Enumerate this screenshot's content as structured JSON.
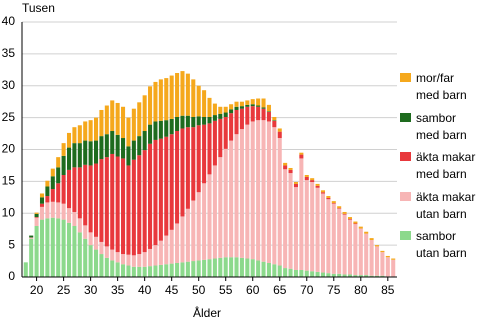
{
  "chart_data": {
    "type": "stacked-bar",
    "ylabel": "Tusen",
    "xlabel": "Ålder",
    "x": [
      18,
      19,
      20,
      21,
      22,
      23,
      24,
      25,
      26,
      27,
      28,
      29,
      30,
      31,
      32,
      33,
      34,
      35,
      36,
      37,
      38,
      39,
      40,
      41,
      42,
      43,
      44,
      45,
      46,
      47,
      48,
      49,
      50,
      51,
      52,
      53,
      54,
      55,
      56,
      57,
      58,
      59,
      60,
      61,
      62,
      63,
      64,
      65,
      66,
      67,
      68,
      69,
      70,
      71,
      72,
      73,
      74,
      75,
      76,
      77,
      78,
      79,
      80,
      81,
      82,
      83,
      84,
      85,
      86
    ],
    "xlim": [
      17.3,
      86.7
    ],
    "xticks": [
      20,
      25,
      30,
      35,
      40,
      45,
      50,
      55,
      60,
      65,
      70,
      75,
      80,
      85
    ],
    "ylim": [
      0,
      40
    ],
    "yticks": [
      0,
      5,
      10,
      15,
      20,
      25,
      30,
      35,
      40
    ],
    "grid": true,
    "series": [
      {
        "name": "sambor\nutan barn",
        "color": "#8cd98c",
        "values": [
          2.3,
          6,
          8,
          9,
          9.2,
          9.3,
          9.2,
          9,
          8.5,
          8,
          7,
          6,
          5,
          4.3,
          3.6,
          3,
          2.6,
          2.3,
          2,
          1.8,
          1.6,
          1.6,
          1.6,
          1.7,
          1.8,
          1.9,
          2,
          2.1,
          2.2,
          2.3,
          2.4,
          2.5,
          2.6,
          2.7,
          2.8,
          2.9,
          3,
          3.1,
          3.1,
          3.1,
          3,
          2.9,
          2.8,
          2.6,
          2.4,
          2.2,
          2,
          1.8,
          1.4,
          1.3,
          1.1,
          1.1,
          1,
          0.9,
          0.8,
          0.7,
          0.6,
          0.5,
          0.5,
          0.4,
          0.4,
          0.3,
          0.3,
          0.3,
          0.2,
          0.2,
          0.2,
          0.1,
          0.1
        ]
      },
      {
        "name": "äkta makar\nutan barn",
        "color": "#f7b5b5",
        "values": [
          0,
          0.2,
          1.3,
          2,
          2.5,
          2.5,
          2.5,
          2.5,
          2.3,
          2.2,
          2.2,
          2.1,
          2,
          2,
          1.9,
          1.8,
          1.7,
          1.6,
          1.6,
          1.7,
          1.8,
          2,
          2.3,
          2.7,
          3.2,
          3.8,
          4.5,
          5.3,
          6.2,
          7.2,
          8.3,
          9.5,
          10.7,
          12,
          13.3,
          14.6,
          15.8,
          17,
          18.3,
          19.3,
          20.2,
          21,
          21.6,
          22,
          22.2,
          22.2,
          21.5,
          20,
          15.5,
          15,
          13,
          17.5,
          14.2,
          14,
          13.2,
          12.4,
          11.6,
          11,
          10.2,
          9.4,
          8.6,
          8,
          7.3,
          6.5,
          5.6,
          4.6,
          3.7,
          3,
          2.6
        ]
      },
      {
        "name": "äkta makar\nmed barn",
        "color": "#e8383c",
        "values": [
          0,
          0,
          0.1,
          0.5,
          1,
          2,
          3,
          4.5,
          6,
          7,
          8,
          9.5,
          10.5,
          11.5,
          13,
          14,
          15,
          15,
          15,
          14,
          15,
          15.5,
          16,
          16.5,
          16.5,
          16,
          15.5,
          15,
          14.5,
          13.8,
          12.8,
          11.5,
          10.5,
          9.2,
          8,
          7,
          6,
          5,
          4.3,
          3.8,
          3.2,
          2.8,
          2.4,
          2.1,
          1.8,
          1.5,
          1,
          1,
          0.6,
          0.5,
          0.5,
          0.6,
          0.5,
          0.3,
          0.3,
          0.2,
          0.2,
          0.1,
          0.1,
          0.1,
          0.1,
          0.1,
          0,
          0,
          0,
          0,
          0,
          0,
          0
        ]
      },
      {
        "name": "sambor\nmed barn",
        "color": "#1e6b1e",
        "values": [
          0,
          0.3,
          0.5,
          1,
          1.5,
          2,
          2.5,
          3,
          3.5,
          3.8,
          3.8,
          3.8,
          3.8,
          3.6,
          3.6,
          3.6,
          3.6,
          3.4,
          3.2,
          3,
          3,
          3,
          3,
          3,
          2.9,
          2.8,
          2.6,
          2.4,
          2.2,
          2,
          1.8,
          1.6,
          1.4,
          1.2,
          1,
          0.9,
          0.8,
          0.7,
          0.6,
          0.5,
          0.4,
          0.3,
          0.3,
          0.2,
          0.2,
          0.1,
          0.1,
          0,
          0,
          0,
          0,
          0,
          0,
          0,
          0,
          0,
          0,
          0,
          0,
          0,
          0,
          0,
          0,
          0,
          0,
          0,
          0,
          0,
          0
        ]
      },
      {
        "name": "mor/far\nmed barn",
        "color": "#f5a81c",
        "values": [
          0,
          0,
          0.2,
          0.6,
          0.9,
          1.2,
          1.6,
          2,
          2.3,
          2.5,
          2.8,
          3,
          3.3,
          3.6,
          4.1,
          4.5,
          4.8,
          5,
          4.9,
          4.5,
          5,
          5.3,
          5.6,
          6,
          6.2,
          6.5,
          6.6,
          6.8,
          6.9,
          7,
          6.6,
          5.9,
          4.8,
          4.2,
          3,
          1.8,
          1.1,
          0.9,
          0.8,
          0.8,
          0.7,
          0.7,
          0.8,
          1.1,
          1.4,
          1,
          0.5,
          0.5,
          0.4,
          0.3,
          0.3,
          0.3,
          0.3,
          0.3,
          0.3,
          0.3,
          0.3,
          0.3,
          0.3,
          0.3,
          0.3,
          0.3,
          0.3,
          0.3,
          0.3,
          0.2,
          0.2,
          0.2,
          0.2
        ]
      }
    ]
  }
}
